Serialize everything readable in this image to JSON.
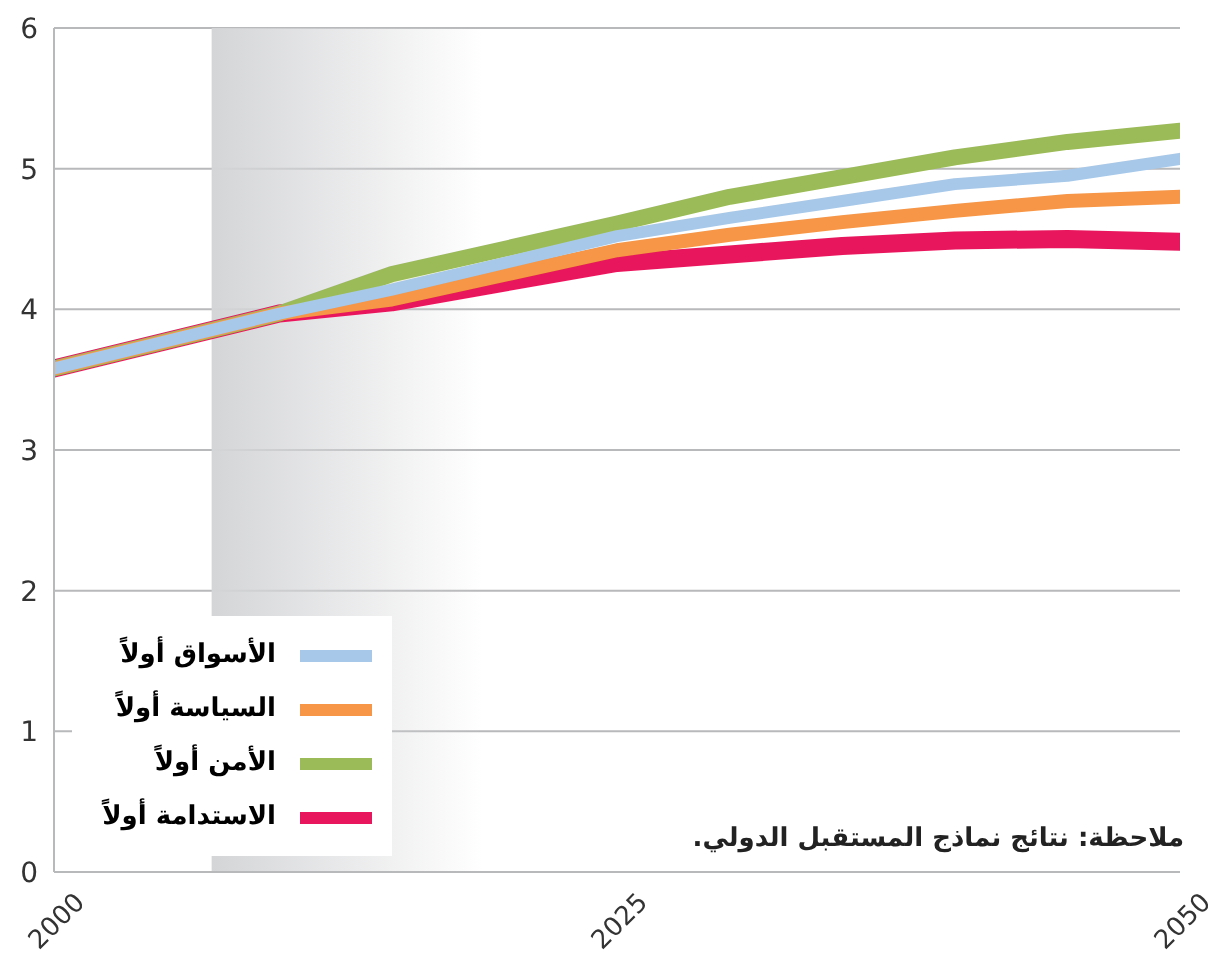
{
  "chart_data": {
    "type": "line",
    "x": [
      2000,
      2010,
      2015,
      2025,
      2030,
      2035,
      2040,
      2045,
      2050
    ],
    "series": [
      {
        "name": "الأسواق أولاً",
        "color": "#a7c8e8",
        "values": [
          3.58,
          3.97,
          4.14,
          4.52,
          4.65,
          4.77,
          4.89,
          4.95,
          5.07
        ]
      },
      {
        "name": "السياسة أولاً",
        "color": "#f79646",
        "values": [
          3.58,
          3.97,
          4.07,
          4.42,
          4.53,
          4.62,
          4.7,
          4.77,
          4.8
        ]
      },
      {
        "name": "الأمن أولاً",
        "color": "#9bbb59",
        "values": [
          3.58,
          3.97,
          4.25,
          4.61,
          4.8,
          4.94,
          5.08,
          5.19,
          5.27
        ]
      },
      {
        "name": "الاستدامة أولاً",
        "color": "#e8175d",
        "values": [
          3.58,
          3.97,
          4.05,
          4.33,
          4.39,
          4.45,
          4.49,
          4.5,
          4.48
        ]
      }
    ],
    "xlim": [
      2000,
      2050
    ],
    "xticks": [
      2000,
      2025,
      2050
    ],
    "ylim": [
      0,
      6
    ],
    "yticks": [
      0,
      1,
      2,
      3,
      4,
      5,
      6
    ],
    "bands": [
      {
        "axis": "x",
        "from": 2007,
        "to": 2019,
        "color": "#d4d5d7"
      }
    ],
    "grid": "y",
    "legend": "bottom left",
    "marker": "none",
    "line_style": "solid",
    "annotations": [
      "ملاحظة: نتائج نماذج المستقبل الدولي."
    ]
  }
}
